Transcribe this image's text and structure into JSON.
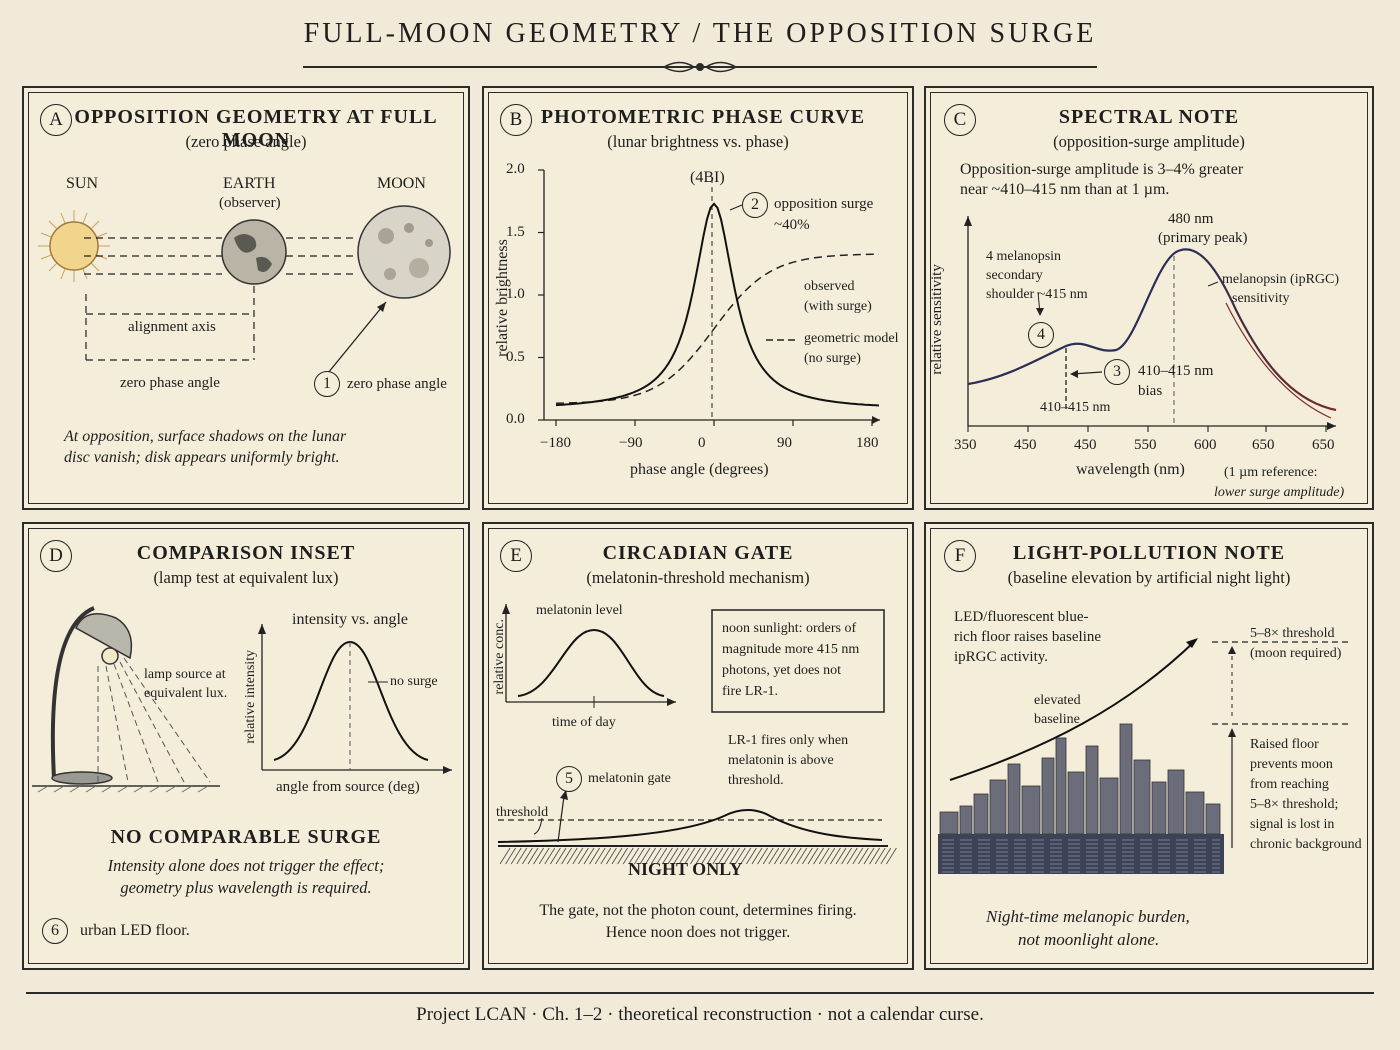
{
  "page_title": "FULL-MOON GEOMETRY / THE OPPOSITION SURGE",
  "footer": "Project LCAN · Ch. 1–2 · theoretical reconstruction · not a calendar curse.",
  "panel_a": {
    "letter": "A",
    "title": "OPPOSITION GEOMETRY AT FULL MOON",
    "subtitle": "(zero phase angle)",
    "sun_label": "SUN",
    "earth_label": "EARTH",
    "earth_sub": "(observer)",
    "moon_label": "MOON",
    "axis_label": "alignment axis",
    "zero_label": "zero phase angle",
    "badge": "1",
    "badge_label": "zero phase angle",
    "caption_1": "At opposition, surface shadows on the lunar",
    "caption_2": "disc vanish; disk appears uniformly bright."
  },
  "panel_b": {
    "letter": "B",
    "title": "PHOTOMETRIC PHASE CURVE",
    "subtitle": "(lunar brightness vs. phase)",
    "peak_label": "(4BI)",
    "badge": "2",
    "surge_label_1": "opposition surge",
    "surge_label_2": "~40%",
    "observed_1": "observed",
    "observed_2": "(with surge)",
    "model_1": "geometric model",
    "model_2": "(no surge)",
    "ylabel": "relative brightness",
    "xlabel": "phase angle (degrees)",
    "yticks": [
      "0.0",
      "0.5",
      "1.0",
      "1.5",
      "2.0"
    ],
    "xticks": [
      "−180",
      "−90",
      "0",
      "90",
      "180"
    ]
  },
  "panel_c": {
    "letter": "C",
    "title": "SPECTRAL NOTE",
    "subtitle": "(opposition-surge amplitude)",
    "intro_1": "Opposition-surge amplitude is 3–4% greater",
    "intro_2": "near ~410–415 nm than at 1 µm.",
    "peak_1": "480 nm",
    "peak_2": "(primary peak)",
    "shoulder_1": "4 melanopsin",
    "shoulder_2": "secondary",
    "shoulder_3": "shoulder ~415 nm",
    "curve_1": "melanopsin (ipRGC)",
    "curve_2": "sensitivity",
    "badge_4": "4",
    "badge_3": "3",
    "bias_1": "410–415 nm",
    "bias_2": "bias",
    "marker_label": "410–415 nm",
    "ylabel": "relative sensitivity",
    "xlabel": "wavelength (nm)",
    "xticks": [
      "350",
      "450",
      "450",
      "550",
      "600",
      "650",
      "650"
    ],
    "ref_1": "(1 µm reference:",
    "ref_2": "lower surge amplitude)"
  },
  "panel_d": {
    "letter": "D",
    "title": "COMPARISON INSET",
    "subtitle": "(lamp test at equivalent lux)",
    "lamp_1": "lamp source at",
    "lamp_2": "equivalent lux.",
    "chart_title": "intensity vs. angle",
    "no_surge": "no surge",
    "ylabel": "relative intensity",
    "xlabel": "angle from source (deg)",
    "headline": "NO COMPARABLE SURGE",
    "caption_1": "Intensity alone does not trigger the effect;",
    "caption_2": "geometry plus wavelength is required.",
    "badge": "6",
    "badge_label": "urban LED floor."
  },
  "panel_e": {
    "letter": "E",
    "title": "CIRCADIAN GATE",
    "subtitle": "(melatonin-threshold mechanism)",
    "chart_title": "melatonin level",
    "ylabel": "relative conc.",
    "xlabel": "time of day",
    "box_1": "noon sunlight: orders of",
    "box_2": "magnitude more 415 nm",
    "box_3": "photons, yet does not",
    "box_4": "fire LR-1.",
    "fires_1": "LR-1 fires only when",
    "fires_2": "melatonin is above",
    "fires_3": "threshold.",
    "badge": "5",
    "gate_label": "melatonin gate",
    "threshold_label": "threshold",
    "night_label": "NIGHT ONLY",
    "caption_1": "The gate, not the photon count, determines firing.",
    "caption_2": "Hence noon does not trigger."
  },
  "panel_f": {
    "letter": "F",
    "title": "LIGHT-POLLUTION NOTE",
    "subtitle": "(baseline elevation by artificial night light)",
    "floor_1": "LED/fluorescent blue-",
    "floor_2": "rich floor raises baseline",
    "floor_3": "ipRGC activity.",
    "elevated_1": "elevated",
    "elevated_2": "baseline",
    "thr_1": "5–8× threshold",
    "thr_2": "(moon required)",
    "raised_1": "Raised floor",
    "raised_2": "prevents moon",
    "raised_3": "from reaching",
    "raised_4": "5–8× threshold;",
    "raised_5": "signal is lost in",
    "raised_6": "chronic background",
    "caption_1": "Night-time melanopic burden,",
    "caption_2": "not moonlight alone."
  }
}
